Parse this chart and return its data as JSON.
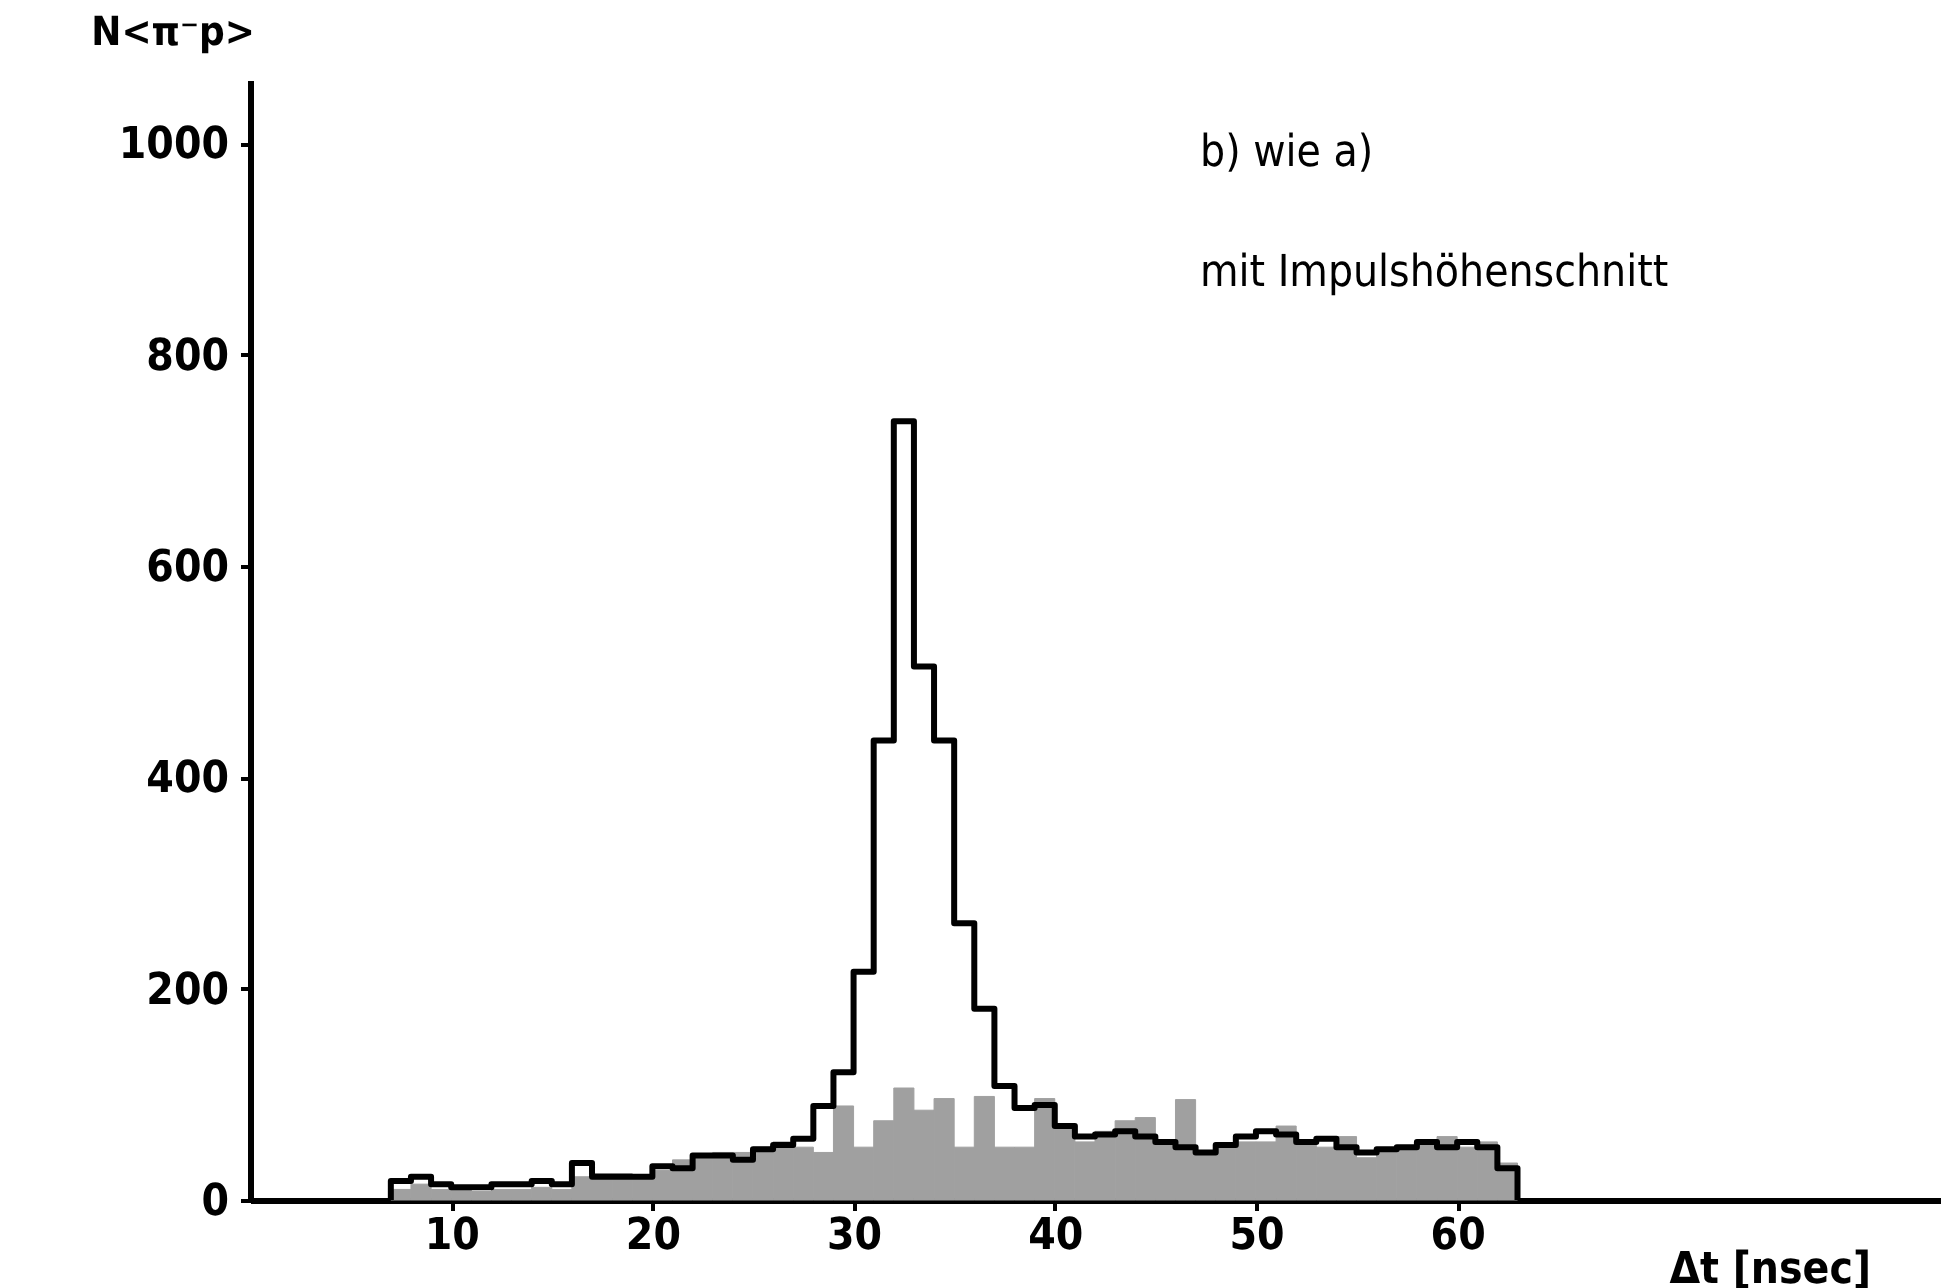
{
  "chart_data": {
    "type": "histogram",
    "xlabel": "Δt [nsec]",
    "ylabel": "N<π⁻p>",
    "annotations": [
      "b) wie a)",
      "mit Impulshöhenschnitt"
    ],
    "xlim": [
      0,
      84
    ],
    "xticks": [
      10,
      20,
      30,
      40,
      50,
      60
    ],
    "ylim": [
      0,
      1060
    ],
    "yticks": [
      0,
      200,
      400,
      600,
      800,
      1000
    ],
    "grid": false,
    "bins": [
      7,
      8,
      9,
      10,
      11,
      12,
      13,
      14,
      15,
      16,
      17,
      18,
      19,
      20,
      21,
      22,
      23,
      24,
      25,
      26,
      27,
      28,
      29,
      30,
      31,
      32,
      33,
      34,
      35,
      36,
      37,
      38,
      39,
      40,
      41,
      42,
      43,
      44,
      45,
      46,
      47,
      48,
      49,
      50,
      51,
      52,
      53,
      54,
      55,
      56,
      57,
      58,
      59,
      60,
      61,
      62,
      63
    ],
    "series": [
      {
        "color": "#a0a0a0",
        "values": [
          10,
          15,
          10,
          10,
          8,
          10,
          10,
          12,
          10,
          22,
          25,
          25,
          22,
          28,
          38,
          40,
          45,
          45,
          50,
          55,
          50,
          45,
          89,
          50,
          75,
          106,
          85,
          96,
          50,
          98,
          50,
          50,
          96,
          70,
          55,
          65,
          75,
          78,
          55,
          95,
          45,
          50,
          55,
          55,
          70,
          55,
          50,
          60,
          40,
          45,
          50,
          55,
          60,
          50,
          55,
          35
        ]
      },
      {
        "type": "step",
        "color": "#000000",
        "x": [
          7,
          7,
          8,
          9,
          10,
          11,
          12,
          13,
          14,
          15,
          16,
          17,
          18,
          19,
          20,
          21,
          22,
          23,
          24,
          25,
          26,
          27,
          28,
          29,
          30,
          31,
          32,
          33,
          34,
          35,
          36,
          37,
          38,
          39,
          40,
          41,
          42,
          43,
          44,
          45,
          46,
          47,
          48,
          49,
          50,
          51,
          52,
          53,
          54,
          55,
          56,
          57,
          58,
          59,
          60,
          61,
          62,
          63
        ],
        "values": [
          0,
          18,
          22,
          15,
          12,
          12,
          15,
          15,
          18,
          15,
          35,
          22,
          22,
          22,
          32,
          30,
          42,
          42,
          38,
          48,
          52,
          58,
          89,
          121,
          216,
          435,
          737,
          505,
          435,
          262,
          181,
          108,
          87,
          90,
          70,
          60,
          62,
          65,
          60,
          55,
          50,
          45,
          52,
          60,
          65,
          62,
          55,
          58,
          50,
          45,
          48,
          50,
          55,
          50,
          55,
          50,
          30,
          0
        ]
      }
    ]
  }
}
